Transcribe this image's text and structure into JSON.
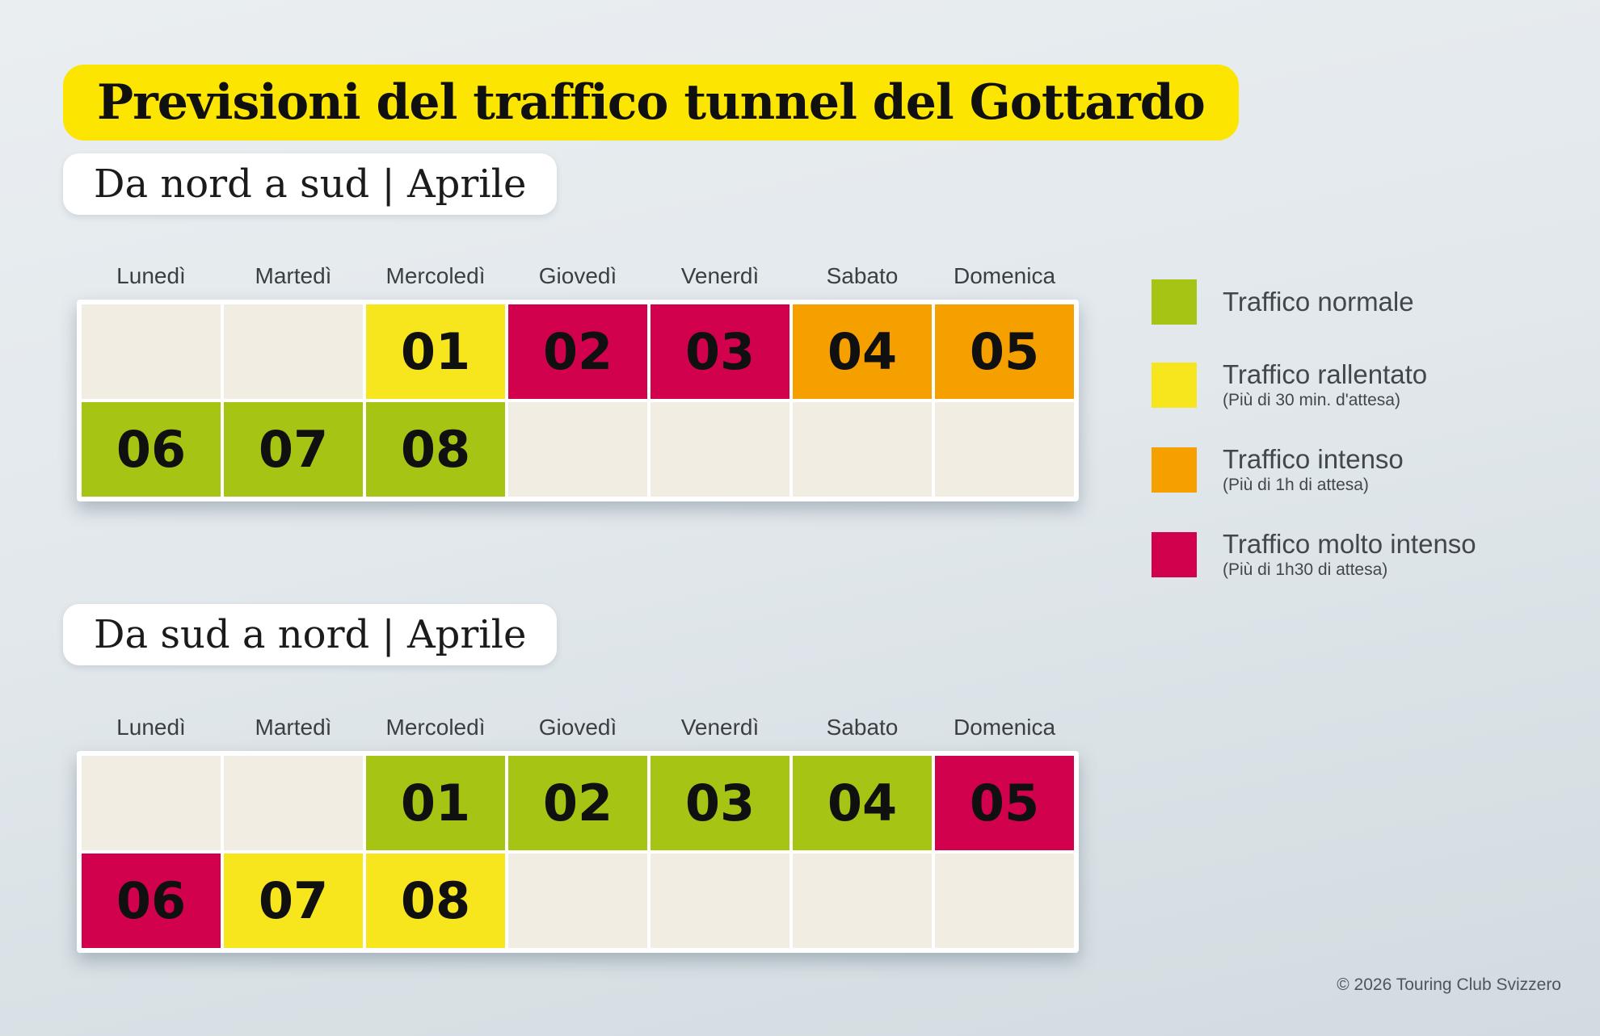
{
  "title": "Previsioni del traffico tunnel del Gottardo",
  "footer": "© 2026 Touring Club Svizzero",
  "colors": {
    "normale": "#a5c413",
    "rallentato": "#f7e61e",
    "intenso": "#f6a000",
    "molto_intenso": "#d2014e",
    "empty": "#f2ede3",
    "title_bg": "#fce500"
  },
  "legend": [
    {
      "key": "normale",
      "label": "Traffico normale",
      "note": ""
    },
    {
      "key": "rallentato",
      "label": "Traffico rallentato",
      "note": "(Più di 30 min. d'attesa)"
    },
    {
      "key": "intenso",
      "label": "Traffico intenso",
      "note": "(Più di 1h di attesa)"
    },
    {
      "key": "molto_intenso",
      "label": "Traffico molto intenso",
      "note": "(Più di 1h30 di attesa)"
    }
  ],
  "chart_data": [
    {
      "type": "heatmap",
      "title": "Da nord a sud | Aprile",
      "columns": [
        "Lunedì",
        "Martedì",
        "Mercoledì",
        "Giovedì",
        "Venerdì",
        "Sabato",
        "Domenica"
      ],
      "rows": [
        [
          {
            "date": "",
            "level": "empty"
          },
          {
            "date": "",
            "level": "empty"
          },
          {
            "date": "01",
            "level": "rallentato"
          },
          {
            "date": "02",
            "level": "molto_intenso"
          },
          {
            "date": "03",
            "level": "molto_intenso"
          },
          {
            "date": "04",
            "level": "intenso"
          },
          {
            "date": "05",
            "level": "intenso"
          }
        ],
        [
          {
            "date": "06",
            "level": "normale"
          },
          {
            "date": "07",
            "level": "normale"
          },
          {
            "date": "08",
            "level": "normale"
          },
          {
            "date": "",
            "level": "empty"
          },
          {
            "date": "",
            "level": "empty"
          },
          {
            "date": "",
            "level": "empty"
          },
          {
            "date": "",
            "level": "empty"
          }
        ]
      ],
      "legend_position": "right"
    },
    {
      "type": "heatmap",
      "title": "Da sud a nord | Aprile",
      "columns": [
        "Lunedì",
        "Martedì",
        "Mercoledì",
        "Giovedì",
        "Venerdì",
        "Sabato",
        "Domenica"
      ],
      "rows": [
        [
          {
            "date": "",
            "level": "empty"
          },
          {
            "date": "",
            "level": "empty"
          },
          {
            "date": "01",
            "level": "normale"
          },
          {
            "date": "02",
            "level": "normale"
          },
          {
            "date": "03",
            "level": "normale"
          },
          {
            "date": "04",
            "level": "normale"
          },
          {
            "date": "05",
            "level": "molto_intenso"
          }
        ],
        [
          {
            "date": "06",
            "level": "molto_intenso"
          },
          {
            "date": "07",
            "level": "rallentato"
          },
          {
            "date": "08",
            "level": "rallentato"
          },
          {
            "date": "",
            "level": "empty"
          },
          {
            "date": "",
            "level": "empty"
          },
          {
            "date": "",
            "level": "empty"
          },
          {
            "date": "",
            "level": "empty"
          }
        ]
      ],
      "legend_position": "none"
    }
  ]
}
